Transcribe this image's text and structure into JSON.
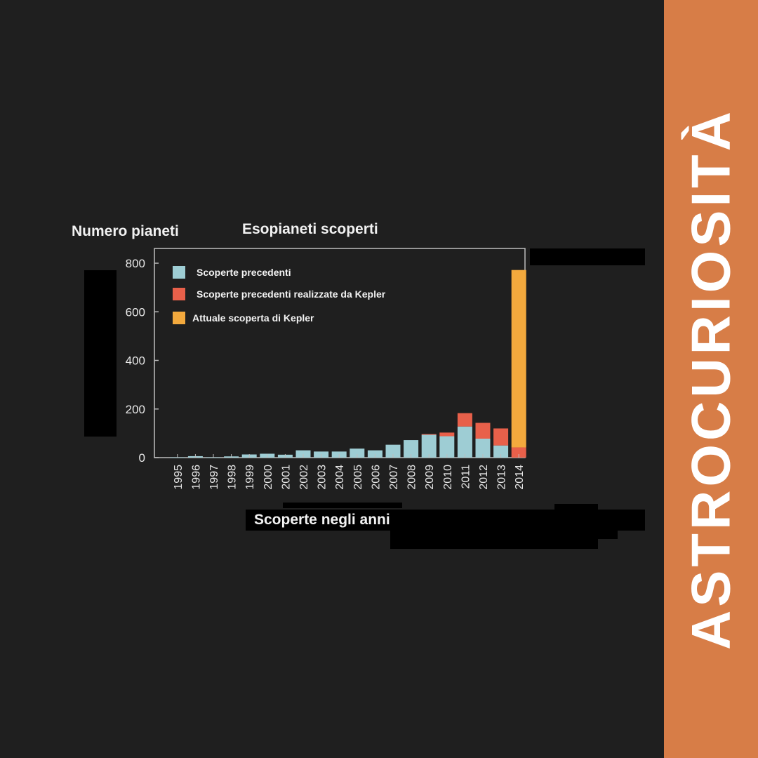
{
  "sidebar": {
    "label": "ASTROCURIOSITÀ",
    "color": "#d77d47"
  },
  "chart_data": {
    "type": "bar",
    "stacked": true,
    "title": "Esopianeti scoperti",
    "ylabel": "Numero pianeti",
    "xlabel": "Scoperte negli anni",
    "categories": [
      "1995",
      "1996",
      "1997",
      "1998",
      "1999",
      "2000",
      "2001",
      "2002",
      "2003",
      "2004",
      "2005",
      "2006",
      "2007",
      "2008",
      "2009",
      "2010",
      "2011",
      "2012",
      "2013",
      "2014"
    ],
    "series": [
      {
        "name": "Scoperte precedenti",
        "color": "#9ecdd4",
        "values": [
          1,
          6,
          1,
          5,
          13,
          16,
          12,
          30,
          25,
          25,
          37,
          30,
          53,
          72,
          94,
          88,
          128,
          78,
          50,
          0
        ]
      },
      {
        "name": "Scoperte precedenti realizzate da Kepler",
        "color": "#e8604a",
        "values": [
          0,
          0,
          0,
          0,
          0,
          0,
          0,
          0,
          0,
          0,
          0,
          0,
          0,
          0,
          3,
          15,
          55,
          65,
          70,
          42
        ]
      },
      {
        "name": "Attuale scoperta di Kepler",
        "color": "#f3a93d",
        "values": [
          0,
          0,
          0,
          0,
          0,
          0,
          0,
          0,
          0,
          0,
          0,
          0,
          0,
          0,
          0,
          0,
          0,
          0,
          0,
          730
        ]
      }
    ],
    "yticks": [
      0,
      200,
      400,
      600,
      800
    ],
    "ylim": [
      0,
      800
    ],
    "grid": false,
    "legend_position": "top-left"
  }
}
